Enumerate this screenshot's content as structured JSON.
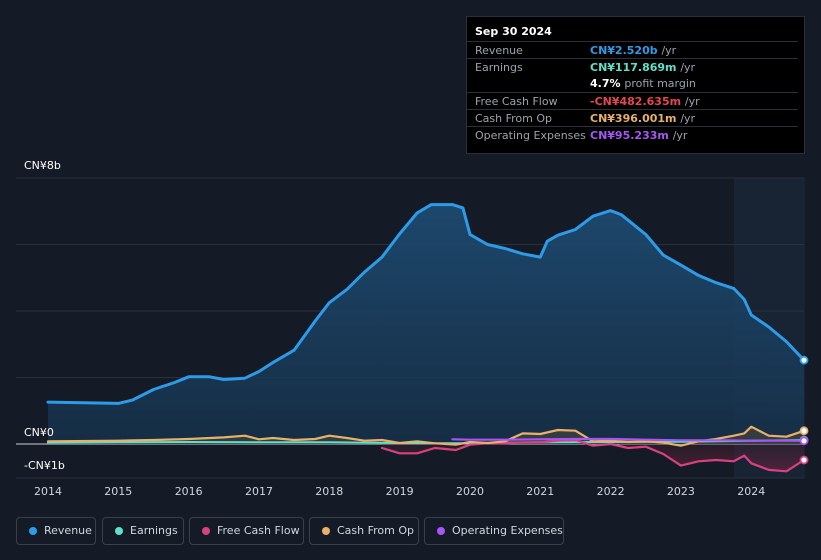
{
  "tooltip": {
    "date": "Sep 30 2024",
    "rows": [
      {
        "label": "Revenue",
        "value": "CN¥2.520b",
        "unit": "/yr",
        "color": "#2d9be8"
      },
      {
        "label": "Earnings",
        "value": "CN¥117.869m",
        "unit": "/yr",
        "color": "#5fe0c8"
      },
      {
        "label": "",
        "value": "4.7%",
        "unit": "profit margin",
        "color": "#ffffff"
      },
      {
        "label": "Free Cash Flow",
        "value": "-CN¥482.635m",
        "unit": "/yr",
        "color": "#e8454f"
      },
      {
        "label": "Cash From Op",
        "value": "CN¥396.001m",
        "unit": "/yr",
        "color": "#e8b06a"
      },
      {
        "label": "Operating Expenses",
        "value": "CN¥95.233m",
        "unit": "/yr",
        "color": "#a855f7"
      }
    ]
  },
  "axis": {
    "y_top_label": "CN¥8b",
    "y_zero_label": "CN¥0",
    "y_neg_label": "-CN¥1b"
  },
  "legend": [
    {
      "label": "Revenue",
      "color": "#2d9be8"
    },
    {
      "label": "Earnings",
      "color": "#5fe0c8"
    },
    {
      "label": "Free Cash Flow",
      "color": "#d9417f"
    },
    {
      "label": "Cash From Op",
      "color": "#e8b06a"
    },
    {
      "label": "Operating Expenses",
      "color": "#a855f7"
    }
  ],
  "chart_data": {
    "type": "area",
    "ylim": [
      -1.1,
      8
    ],
    "xlim": [
      2013.8,
      2024.75
    ],
    "x_ticks": [
      "2014",
      "2015",
      "2016",
      "2017",
      "2018",
      "2019",
      "2020",
      "2021",
      "2022",
      "2023",
      "2024"
    ],
    "series": [
      {
        "name": "Revenue",
        "color": "#2d9be8",
        "x": [
          2014.0,
          2014.5,
          2015.0,
          2015.2,
          2015.5,
          2015.8,
          2016.0,
          2016.3,
          2016.5,
          2016.8,
          2017.0,
          2017.2,
          2017.5,
          2017.8,
          2018.0,
          2018.25,
          2018.5,
          2018.75,
          2019.0,
          2019.25,
          2019.45,
          2019.75,
          2019.9,
          2020.0,
          2020.25,
          2020.5,
          2020.75,
          2021.0,
          2021.1,
          2021.25,
          2021.5,
          2021.75,
          2022.0,
          2022.15,
          2022.5,
          2022.75,
          2023.0,
          2023.25,
          2023.5,
          2023.75,
          2023.9,
          2024.0,
          2024.25,
          2024.5,
          2024.75
        ],
        "values": [
          1.26,
          1.24,
          1.22,
          1.32,
          1.64,
          1.85,
          2.02,
          2.02,
          1.94,
          1.98,
          2.18,
          2.45,
          2.82,
          3.7,
          4.25,
          4.65,
          5.17,
          5.62,
          6.32,
          6.95,
          7.2,
          7.2,
          7.1,
          6.3,
          6.0,
          5.88,
          5.72,
          5.62,
          6.1,
          6.28,
          6.45,
          6.85,
          7.02,
          6.9,
          6.3,
          5.68,
          5.38,
          5.07,
          4.85,
          4.68,
          4.35,
          3.88,
          3.52,
          3.08,
          2.52
        ]
      },
      {
        "name": "Earnings",
        "color": "#5fe0c8",
        "x": [
          2014.0,
          2015.0,
          2016.0,
          2017.0,
          2018.0,
          2019.0,
          2019.5,
          2020.0,
          2021.0,
          2022.0,
          2023.0,
          2024.0,
          2024.75
        ],
        "values": [
          0.04,
          0.05,
          0.06,
          0.05,
          0.05,
          0.03,
          0.02,
          0.02,
          0.05,
          0.06,
          0.07,
          0.1,
          0.118
        ]
      },
      {
        "name": "Free Cash Flow",
        "color": "#d9417f",
        "x": [
          2018.75,
          2019.0,
          2019.25,
          2019.5,
          2019.8,
          2020.0,
          2020.25,
          2020.5,
          2020.75,
          2021.0,
          2021.25,
          2021.5,
          2021.75,
          2022.0,
          2022.25,
          2022.5,
          2022.75,
          2023.0,
          2023.25,
          2023.5,
          2023.75,
          2023.9,
          2024.0,
          2024.25,
          2024.5,
          2024.75
        ],
        "values": [
          -0.12,
          -0.28,
          -0.28,
          -0.12,
          -0.18,
          -0.02,
          0.02,
          0.02,
          0.05,
          0.05,
          0.1,
          0.12,
          -0.05,
          0.0,
          -0.12,
          -0.08,
          -0.3,
          -0.65,
          -0.52,
          -0.48,
          -0.52,
          -0.35,
          -0.58,
          -0.78,
          -0.82,
          -0.48
        ]
      },
      {
        "name": "Cash From Op",
        "color": "#e8b06a",
        "x": [
          2014.0,
          2015.0,
          2015.5,
          2016.0,
          2016.5,
          2016.8,
          2017.0,
          2017.2,
          2017.5,
          2017.8,
          2018.0,
          2018.25,
          2018.5,
          2018.75,
          2019.0,
          2019.25,
          2019.5,
          2019.8,
          2020.0,
          2020.25,
          2020.5,
          2020.75,
          2021.0,
          2021.25,
          2021.5,
          2021.75,
          2022.0,
          2022.25,
          2022.5,
          2022.75,
          2023.0,
          2023.25,
          2023.5,
          2023.75,
          2023.9,
          2024.0,
          2024.25,
          2024.5,
          2024.75
        ],
        "values": [
          0.08,
          0.1,
          0.12,
          0.15,
          0.2,
          0.25,
          0.14,
          0.18,
          0.12,
          0.15,
          0.25,
          0.18,
          0.1,
          0.12,
          0.03,
          0.08,
          0.02,
          -0.02,
          0.06,
          0.03,
          0.08,
          0.32,
          0.3,
          0.42,
          0.4,
          0.08,
          0.1,
          0.06,
          0.08,
          0.04,
          -0.05,
          0.08,
          0.15,
          0.25,
          0.32,
          0.52,
          0.25,
          0.22,
          0.396
        ]
      },
      {
        "name": "Operating Expenses",
        "color": "#a855f7",
        "x": [
          2019.75,
          2020.0,
          2020.5,
          2021.0,
          2021.5,
          2022.0,
          2022.5,
          2023.0,
          2023.5,
          2024.0,
          2024.5,
          2024.75
        ],
        "values": [
          0.14,
          0.13,
          0.13,
          0.14,
          0.15,
          0.15,
          0.13,
          0.11,
          0.11,
          0.1,
          0.1,
          0.095
        ]
      }
    ]
  }
}
